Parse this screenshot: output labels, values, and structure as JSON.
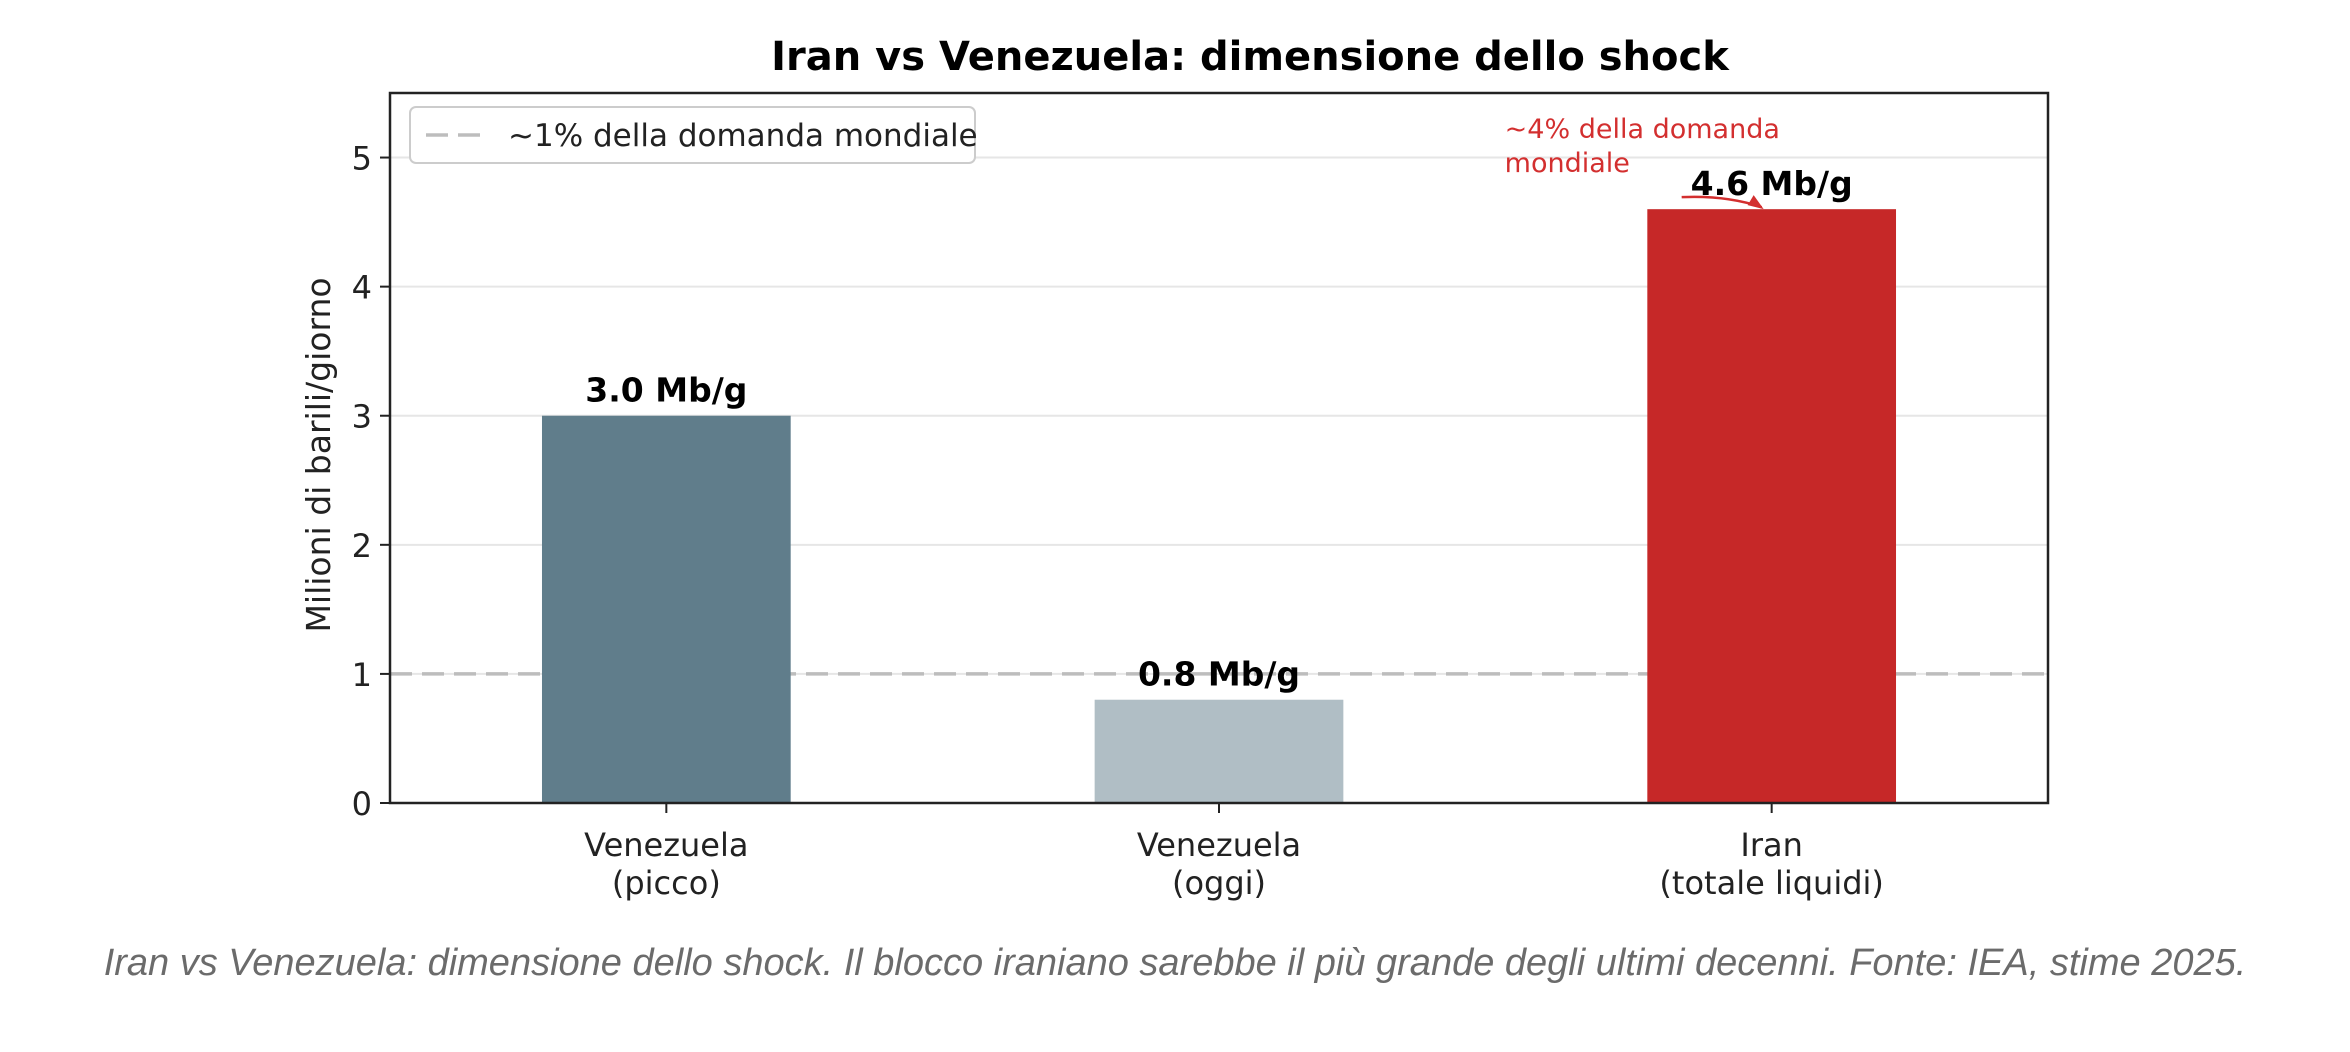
{
  "chart_data": {
    "type": "bar",
    "title": "Iran vs Venezuela: dimensione dello shock",
    "ylabel": "Milioni di barili/giorno",
    "xlabel": "",
    "ylim": [
      0,
      5.5
    ],
    "yticks": [
      0,
      1,
      2,
      3,
      4,
      5
    ],
    "grid": true,
    "categories": [
      "Venezuela\n(picco)",
      "Venezuela\n(oggi)",
      "Iran\n(totale liquidi)"
    ],
    "values": [
      3.0,
      0.8,
      4.6
    ],
    "data_labels": [
      "3.0 Mb/g",
      "0.8 Mb/g",
      "4.6 Mb/g"
    ],
    "colors": [
      "#607d8b",
      "#b0bec5",
      "#c62828"
    ],
    "reference_line": {
      "value": 1,
      "label": "~1% della domanda mondiale",
      "color": "#bdbdbd",
      "style": "dashed"
    },
    "legend_position": "upper-left",
    "annotation": {
      "text": "~4% della domanda\nmondiale",
      "target_category": "Iran\n(totale liquidi)",
      "target_value": 4.6,
      "color": "#d32f2f"
    }
  },
  "caption": "Iran vs Venezuela: dimensione dello shock. Il blocco iraniano sarebbe il più grande degli ultimi decenni. Fonte: IEA, stime 2025."
}
